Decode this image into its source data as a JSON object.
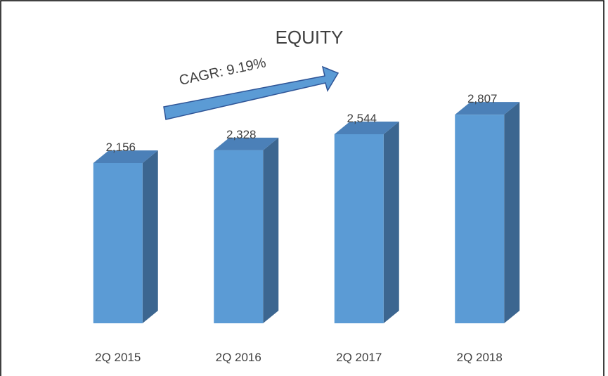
{
  "chart_data": {
    "type": "bar3d",
    "title": "EQUITY",
    "annotation": "CAGR: 9.19%",
    "categories": [
      "2Q 2015",
      "2Q 2016",
      "2Q 2017",
      "2Q 2018"
    ],
    "values": [
      2156,
      2328,
      2544,
      2807
    ],
    "value_labels": [
      "2,156",
      "2,328",
      "2,544",
      "2,807"
    ],
    "color": "#5b9bd5",
    "ylim": [
      0,
      4000
    ]
  }
}
